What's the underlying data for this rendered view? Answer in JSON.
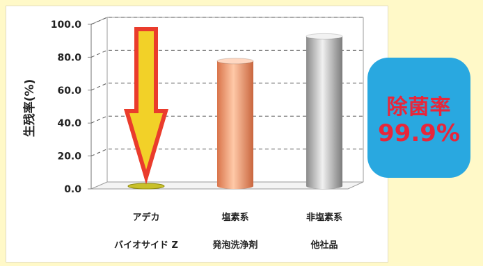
{
  "chart_data": {
    "type": "bar",
    "categories": [
      [
        "アデカ",
        "バイオサイド Z"
      ],
      [
        "塩素系",
        "発泡洗浄剤"
      ],
      [
        "非塩素系",
        "他社品"
      ]
    ],
    "values": [
      0.1,
      76.0,
      91.0
    ],
    "ylabel": "生残率(%)",
    "ylim": [
      0,
      100
    ],
    "yticks": [
      "0.0",
      "20.0",
      "40.0",
      "60.0",
      "80.0",
      "100.0"
    ],
    "grid": true,
    "colors": {
      "bar1": "#c8c02a",
      "bar2": "#f2a07a",
      "bar3": "#b8b8b8",
      "arrow_fill": "#f2d128",
      "arrow_stroke": "#ea3c2c"
    }
  },
  "badge": {
    "title": "除菌率",
    "value": "99.9%",
    "background": "#29a8e0",
    "text_color": "#e8263a"
  }
}
